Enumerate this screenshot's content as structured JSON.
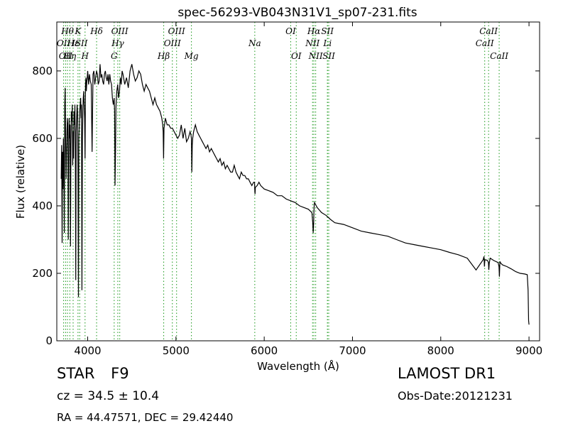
{
  "chart_data": {
    "type": "line",
    "title": "spec-56293-VB043N31V1_sp07-231.fits",
    "xlabel": "Wavelength (Å)",
    "ylabel": "Flux (relative)",
    "xlim": [
      3650,
      9120
    ],
    "ylim": [
      0,
      945
    ],
    "x_ticks": [
      4000,
      5000,
      6000,
      7000,
      8000,
      9000
    ],
    "y_ticks": [
      0,
      200,
      400,
      600,
      800
    ],
    "grid": false,
    "line_color": "#000000",
    "marker_color": "#2ca02c",
    "series": [
      {
        "x": [
          3700,
          3705,
          3710,
          3715,
          3720,
          3725,
          3730,
          3735,
          3740,
          3745,
          3750,
          3755,
          3760,
          3765,
          3770,
          3775,
          3780,
          3785,
          3790,
          3795,
          3800,
          3805,
          3810,
          3815,
          3820,
          3825,
          3830,
          3835,
          3840,
          3845,
          3850,
          3855,
          3860,
          3865,
          3870,
          3875,
          3880,
          3885,
          3890,
          3895,
          3900,
          3905,
          3910,
          3915,
          3920,
          3925,
          3930,
          3935,
          3940,
          3945,
          3950,
          3955,
          3960,
          3965,
          3970,
          3975,
          3980,
          3985,
          3990,
          3995,
          4000,
          4010,
          4020,
          4030,
          4040,
          4050,
          4060,
          4070,
          4080,
          4090,
          4100,
          4110,
          4120,
          4130,
          4140,
          4150,
          4160,
          4170,
          4180,
          4190,
          4200,
          4210,
          4220,
          4230,
          4240,
          4250,
          4260,
          4270,
          4280,
          4290,
          4300,
          4305,
          4310,
          4315,
          4320,
          4325,
          4330,
          4340,
          4350,
          4360,
          4370,
          4380,
          4390,
          4400,
          4420,
          4440,
          4460,
          4480,
          4500,
          4520,
          4540,
          4560,
          4580,
          4600,
          4620,
          4640,
          4660,
          4680,
          4700,
          4720,
          4740,
          4760,
          4780,
          4800,
          4820,
          4840,
          4850,
          4855,
          4860,
          4865,
          4870,
          4880,
          4900,
          4920,
          4940,
          4960,
          4980,
          5000,
          5020,
          5040,
          5060,
          5080,
          5100,
          5120,
          5140,
          5160,
          5170,
          5175,
          5180,
          5185,
          5190,
          5200,
          5220,
          5240,
          5260,
          5280,
          5300,
          5320,
          5340,
          5360,
          5380,
          5400,
          5420,
          5440,
          5460,
          5480,
          5500,
          5520,
          5540,
          5560,
          5580,
          5600,
          5620,
          5640,
          5660,
          5680,
          5700,
          5720,
          5740,
          5760,
          5780,
          5800,
          5820,
          5840,
          5860,
          5880,
          5890,
          5893,
          5896,
          5900,
          5920,
          5940,
          5960,
          5980,
          6000,
          6050,
          6100,
          6150,
          6200,
          6250,
          6300,
          6350,
          6400,
          6450,
          6500,
          6540,
          6550,
          6555,
          6560,
          6563,
          6566,
          6570,
          6580,
          6600,
          6650,
          6700,
          6750,
          6800,
          6900,
          7000,
          7100,
          7200,
          7300,
          7400,
          7500,
          7600,
          7700,
          7800,
          7900,
          8000,
          8100,
          8200,
          8300,
          8400,
          8480,
          8490,
          8495,
          8500,
          8510,
          8530,
          8540,
          8545,
          8550,
          8560,
          8600,
          8650,
          8660,
          8665,
          8670,
          8680,
          8700,
          8750,
          8800,
          8850,
          8900,
          8950,
          8980,
          8990,
          8995,
          9000
        ],
        "y": [
          480,
          580,
          290,
          560,
          450,
          600,
          540,
          320,
          700,
          750,
          600,
          480,
          560,
          620,
          660,
          640,
          300,
          520,
          660,
          600,
          640,
          280,
          580,
          680,
          650,
          700,
          520,
          620,
          540,
          680,
          640,
          700,
          560,
          180,
          620,
          660,
          700,
          680,
          520,
          130,
          600,
          640,
          680,
          700,
          720,
          660,
          700,
          150,
          600,
          680,
          720,
          740,
          700,
          660,
          540,
          760,
          780,
          740,
          770,
          780,
          800,
          760,
          790,
          770,
          760,
          560,
          790,
          800,
          760,
          780,
          800,
          790,
          760,
          770,
          820,
          780,
          790,
          770,
          760,
          790,
          800,
          780,
          770,
          790,
          760,
          790,
          770,
          760,
          720,
          700,
          720,
          680,
          460,
          560,
          690,
          720,
          740,
          760,
          720,
          740,
          780,
          760,
          800,
          790,
          760,
          780,
          750,
          800,
          820,
          790,
          770,
          780,
          800,
          790,
          760,
          740,
          760,
          750,
          740,
          720,
          700,
          720,
          700,
          690,
          680,
          660,
          640,
          620,
          540,
          630,
          640,
          660,
          640,
          640,
          630,
          630,
          620,
          610,
          600,
          610,
          640,
          600,
          630,
          590,
          600,
          620,
          610,
          600,
          500,
          580,
          600,
          620,
          640,
          620,
          610,
          600,
          590,
          580,
          570,
          580,
          560,
          570,
          560,
          550,
          540,
          530,
          540,
          520,
          530,
          510,
          520,
          510,
          500,
          500,
          520,
          500,
          490,
          480,
          500,
          490,
          490,
          480,
          480,
          470,
          460,
          470,
          470,
          450,
          435,
          455,
          460,
          470,
          460,
          455,
          450,
          445,
          440,
          430,
          430,
          420,
          415,
          410,
          400,
          395,
          390,
          380,
          350,
          320,
          350,
          380,
          400,
          410,
          405,
          395,
          380,
          372,
          360,
          350,
          345,
          335,
          325,
          320,
          315,
          310,
          300,
          290,
          285,
          280,
          275,
          270,
          262,
          255,
          245,
          210,
          240,
          250,
          220,
          240,
          240,
          238,
          232,
          210,
          230,
          245,
          238,
          232,
          220,
          190,
          235,
          230,
          225,
          220,
          213,
          205,
          200,
          198,
          196,
          150,
          60,
          48
        ]
      }
    ],
    "lines": [
      {
        "x": 3727,
        "label": "OII",
        "row": 2
      },
      {
        "x": 3750,
        "label": "OII",
        "row": 3
      },
      {
        "x": 3771,
        "label": "Hθ",
        "row": 1
      },
      {
        "x": 3798,
        "label": "Hη",
        "row": 3
      },
      {
        "x": 3835,
        "label": "Hε",
        "row": 2
      },
      {
        "x": 3890,
        "label": "K",
        "row": 1
      },
      {
        "x": 3910,
        "label": "ISII",
        "row": 2
      },
      {
        "x": 3970,
        "label": "H",
        "row": 3
      },
      {
        "x": 4101,
        "label": "Hδ",
        "row": 1
      },
      {
        "x": 4300,
        "label": "G",
        "row": 3
      },
      {
        "x": 4341,
        "label": "Hγ",
        "row": 2
      },
      {
        "x": 4363,
        "label": "OIII",
        "row": 1
      },
      {
        "x": 4861,
        "label": "Hβ",
        "row": 3
      },
      {
        "x": 4959,
        "label": "OIII",
        "row": 2
      },
      {
        "x": 5007,
        "label": "OIII",
        "row": 1
      },
      {
        "x": 5175,
        "label": "Mg",
        "row": 3
      },
      {
        "x": 5893,
        "label": "Na",
        "row": 2
      },
      {
        "x": 6300,
        "label": "OI",
        "row": 1
      },
      {
        "x": 6363,
        "label": "OI",
        "row": 3
      },
      {
        "x": 6548,
        "label": "NII",
        "row": 2
      },
      {
        "x": 6563,
        "label": "Hα",
        "row": 1
      },
      {
        "x": 6583,
        "label": "NII",
        "row": 3
      },
      {
        "x": 6716,
        "label": "SII",
        "row": 1
      },
      {
        "x": 6717,
        "label": "Li",
        "row": 2
      },
      {
        "x": 6731,
        "label": "SII",
        "row": 3
      },
      {
        "x": 8498,
        "label": "CaII",
        "row": 2
      },
      {
        "x": 8542,
        "label": "CaII",
        "row": 1
      },
      {
        "x": 8662,
        "label": "CaII",
        "row": 3
      }
    ]
  },
  "info": {
    "class_label": "STAR",
    "subclass": "F9",
    "redshift": "cz = 34.5 ± 10.4",
    "coords": "RA = 44.47571, DEC = 29.42440",
    "survey": "LAMOST DR1",
    "obs_date": "Obs-Date:20121231"
  }
}
